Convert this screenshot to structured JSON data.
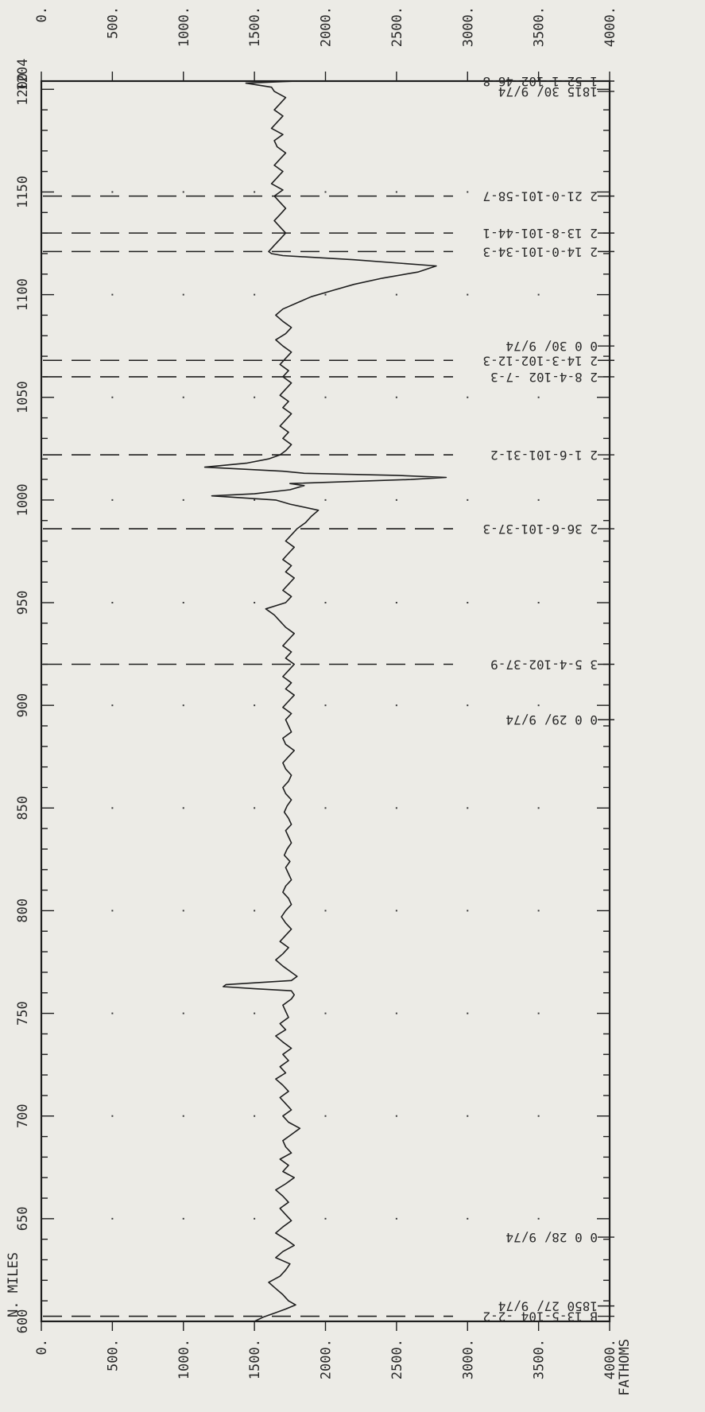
{
  "chart_data": {
    "type": "line",
    "xlabel": "N. MILES",
    "ylabel": "FATHOMS",
    "xlim": [
      600,
      1204
    ],
    "ylim": [
      0,
      4000
    ],
    "x_ticks": [
      "600",
      "650",
      "700",
      "750",
      "800",
      "850",
      "900",
      "950",
      "1000",
      "1050",
      "1100",
      "1150",
      "1200"
    ],
    "x_end_label": "1204",
    "y_ticks": [
      "0.",
      "500.",
      "1000.",
      "1500.",
      "2000.",
      "2500.",
      "3000.",
      "3500.",
      "4000."
    ],
    "y_ticks_top": [
      "0.",
      "500.",
      "1000.",
      "1500.",
      "2000.",
      "2500.",
      "3000.",
      "3500.",
      "4000."
    ],
    "grid": false,
    "series": [
      {
        "x": [
          600,
          602,
          604,
          606,
          608,
          610,
          613,
          616,
          619,
          622,
          625,
          628,
          631,
          634,
          637,
          640,
          643,
          646,
          649,
          652,
          655,
          658,
          661,
          664,
          667,
          670,
          673,
          676,
          679,
          682,
          685,
          688,
          691,
          694,
          697,
          700,
          703,
          706,
          709,
          712,
          715,
          718,
          721,
          724,
          727,
          730,
          733,
          736,
          739,
          742,
          745,
          748,
          751,
          754,
          757,
          759,
          761,
          762,
          763,
          764,
          766,
          768,
          770,
          773,
          776,
          779,
          782,
          785,
          788,
          791,
          794,
          797,
          800,
          803,
          806,
          809,
          812,
          815,
          818,
          821,
          824,
          827,
          830,
          833,
          836,
          839,
          842,
          845,
          848,
          851,
          854,
          857,
          860,
          863,
          866,
          869,
          872,
          875,
          878,
          881,
          884,
          887,
          890,
          893,
          896,
          899,
          902,
          905,
          908,
          911,
          914,
          917,
          920,
          923,
          926,
          929,
          932,
          935,
          938,
          941,
          944,
          947,
          950,
          953,
          956,
          959,
          962,
          965,
          968,
          971,
          974,
          977,
          980,
          983,
          986,
          989,
          992,
          995,
          998,
          1000,
          1002,
          1003,
          1005,
          1007,
          1008,
          1010,
          1011,
          1012,
          1013,
          1014,
          1016,
          1018,
          1020,
          1022,
          1024,
          1027,
          1030,
          1033,
          1036,
          1039,
          1042,
          1045,
          1048,
          1051,
          1054,
          1057,
          1060,
          1063,
          1066,
          1069,
          1072,
          1075,
          1078,
          1081,
          1084,
          1087,
          1090,
          1093,
          1096,
          1099,
          1102,
          1105,
          1108,
          1111,
          1114,
          1117,
          1119,
          1120,
          1121,
          1124,
          1127,
          1130,
          1133,
          1136,
          1139,
          1142,
          1145,
          1148,
          1151,
          1154,
          1157,
          1160,
          1163,
          1166,
          1169,
          1172,
          1175,
          1178,
          1181,
          1184,
          1187,
          1190,
          1193,
          1196,
          1199,
          1201,
          1203,
          1204
        ],
        "y": [
          1500,
          1560,
          1640,
          1720,
          1790,
          1740,
          1700,
          1650,
          1600,
          1680,
          1720,
          1750,
          1650,
          1700,
          1780,
          1720,
          1650,
          1700,
          1760,
          1720,
          1680,
          1740,
          1700,
          1650,
          1720,
          1780,
          1700,
          1740,
          1680,
          1760,
          1720,
          1700,
          1760,
          1820,
          1740,
          1700,
          1760,
          1720,
          1680,
          1740,
          1700,
          1650,
          1720,
          1680,
          1740,
          1700,
          1760,
          1700,
          1650,
          1720,
          1680,
          1740,
          1720,
          1700,
          1760,
          1780,
          1760,
          1500,
          1280,
          1300,
          1760,
          1800,
          1760,
          1700,
          1650,
          1700,
          1740,
          1680,
          1720,
          1760,
          1720,
          1690,
          1720,
          1760,
          1740,
          1700,
          1720,
          1760,
          1740,
          1720,
          1750,
          1710,
          1730,
          1760,
          1740,
          1720,
          1760,
          1740,
          1710,
          1730,
          1760,
          1720,
          1700,
          1740,
          1760,
          1720,
          1700,
          1740,
          1780,
          1720,
          1700,
          1760,
          1740,
          1720,
          1760,
          1700,
          1740,
          1780,
          1720,
          1760,
          1700,
          1740,
          1780,
          1720,
          1760,
          1700,
          1740,
          1780,
          1720,
          1680,
          1640,
          1580,
          1720,
          1760,
          1700,
          1740,
          1780,
          1720,
          1760,
          1700,
          1740,
          1780,
          1720,
          1760,
          1800,
          1860,
          1900,
          1950,
          1750,
          1650,
          1200,
          1500,
          1750,
          1850,
          1750,
          2600,
          2850,
          2500,
          1850,
          1700,
          1150,
          1450,
          1600,
          1680,
          1720,
          1760,
          1700,
          1740,
          1680,
          1720,
          1760,
          1700,
          1740,
          1680,
          1720,
          1760,
          1700,
          1740,
          1680,
          1720,
          1760,
          1700,
          1650,
          1720,
          1760,
          1700,
          1650,
          1700,
          1800,
          1900,
          2050,
          2200,
          2400,
          2650,
          2780,
          2200,
          1700,
          1620,
          1600,
          1640,
          1680,
          1720,
          1680,
          1640,
          1680,
          1720,
          1680,
          1640,
          1700,
          1620,
          1660,
          1700,
          1640,
          1680,
          1720,
          1660,
          1640,
          1700,
          1620,
          1660,
          1700,
          1640,
          1680,
          1720,
          1640,
          1620,
          1440,
          1800
        ]
      }
    ],
    "annotations": [
      {
        "text": "B 13-5-104 -2-2",
        "track": true
      },
      {
        "text": "1850 27/ 9/74",
        "track": false
      },
      {
        "text": "0 0 28/ 9/74",
        "track": false
      },
      {
        "text": "0 0 29/ 9/74",
        "track": false
      },
      {
        "text": "3  5-4-102-37-9",
        "track": true
      },
      {
        "text": "2 36-6-101-37-3",
        "track": true
      },
      {
        "text": "2  1-6-101-31-2",
        "track": true
      },
      {
        "text": "2  8-4-102 -7-3",
        "track": true
      },
      {
        "text": "2 14-3-102-12-3",
        "track": true
      },
      {
        "text": "0 0 30/ 9/74",
        "track": false
      },
      {
        "text": "2 14-0-101-34-3",
        "track": true
      },
      {
        "text": "2 13-8-101-44-1",
        "track": true
      },
      {
        "text": "2 21-0-101-58-7",
        "track": true
      },
      {
        "text": "1815 30/ 9/74",
        "track": false
      },
      {
        "text": "1 52-1-102-46-8",
        "track": false
      }
    ]
  }
}
